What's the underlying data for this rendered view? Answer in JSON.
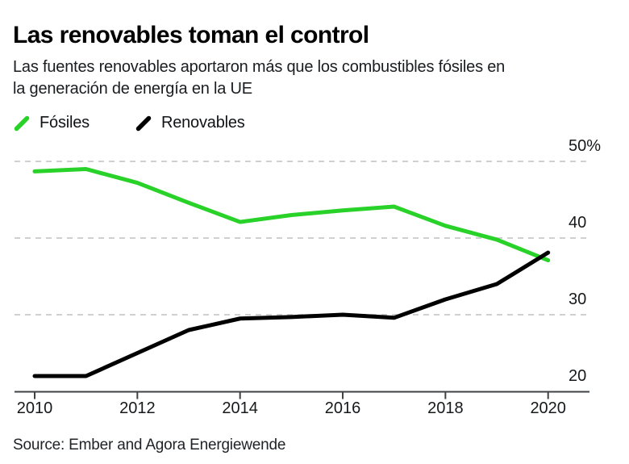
{
  "header": {
    "title": "Las renovables toman el control",
    "subtitle_line1": "Las fuentes renovables aportaron más que los combustibles fósiles en",
    "subtitle_line2": "la generación de energía en la UE"
  },
  "source": "Source: Ember and Agora Energiewende",
  "chart_data": {
    "type": "line",
    "title": "Las renovables toman el control",
    "subtitle": "Las fuentes renovables aportaron más que los combustibles fósiles en la generación de energía en la UE",
    "x": [
      2010,
      2011,
      2012,
      2013,
      2014,
      2015,
      2016,
      2017,
      2018,
      2019,
      2020
    ],
    "series": [
      {
        "name": "Fósiles",
        "color": "#28d228",
        "values": [
          48.7,
          49.0,
          47.2,
          44.6,
          42.1,
          43.0,
          43.6,
          44.1,
          41.6,
          39.8,
          37.1
        ]
      },
      {
        "name": "Renovables",
        "color": "#000000",
        "values": [
          22.0,
          22.0,
          25.0,
          28.0,
          29.5,
          29.7,
          30.0,
          29.6,
          32.0,
          34.0,
          38.1
        ]
      }
    ],
    "xticks": [
      2010,
      2012,
      2014,
      2016,
      2018,
      2020
    ],
    "yticks": [
      {
        "value": 20,
        "label": "20"
      },
      {
        "value": 30,
        "label": "30"
      },
      {
        "value": 40,
        "label": "40"
      },
      {
        "value": 50,
        "label": "50%"
      }
    ],
    "ylim": [
      20,
      53
    ],
    "unit": "%",
    "grid": "dashed-horizontal",
    "legend_position": "top-left",
    "colors": {
      "grid": "#c9c9c9",
      "axis": "#3f4246",
      "tick_text": "#16181a"
    }
  }
}
